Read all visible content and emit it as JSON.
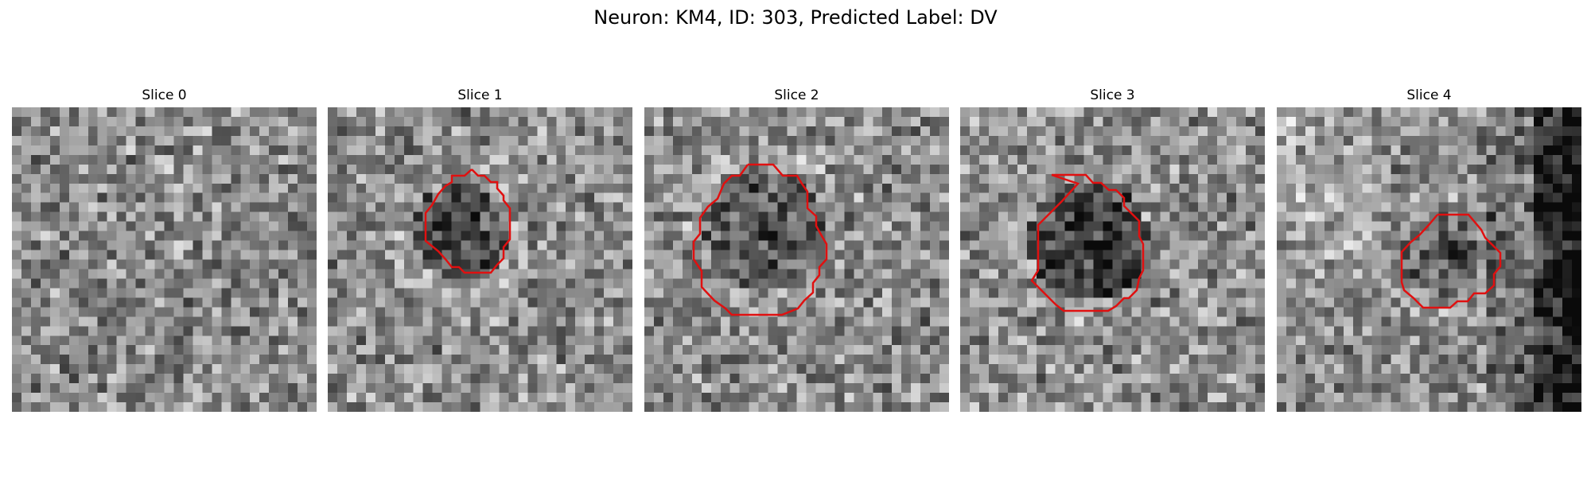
{
  "figure": {
    "title": "Neuron: KM4, ID: 303, Predicted Label: DV"
  },
  "panels": [
    {
      "title": "Slice 0",
      "has_contour": false,
      "image": "grayscale-noise-texture"
    },
    {
      "title": "Slice 1",
      "has_contour": true,
      "image": "grayscale-noise-with-dark-cell"
    },
    {
      "title": "Slice 2",
      "has_contour": true,
      "image": "grayscale-noise-with-dark-cell"
    },
    {
      "title": "Slice 3",
      "has_contour": true,
      "image": "grayscale-noise-with-dark-cell"
    },
    {
      "title": "Slice 4",
      "has_contour": true,
      "image": "grayscale-noise-with-dark-cell-and-dark-right-edge"
    }
  ],
  "colors": {
    "contour": "#e01010",
    "background": "#ffffff"
  }
}
